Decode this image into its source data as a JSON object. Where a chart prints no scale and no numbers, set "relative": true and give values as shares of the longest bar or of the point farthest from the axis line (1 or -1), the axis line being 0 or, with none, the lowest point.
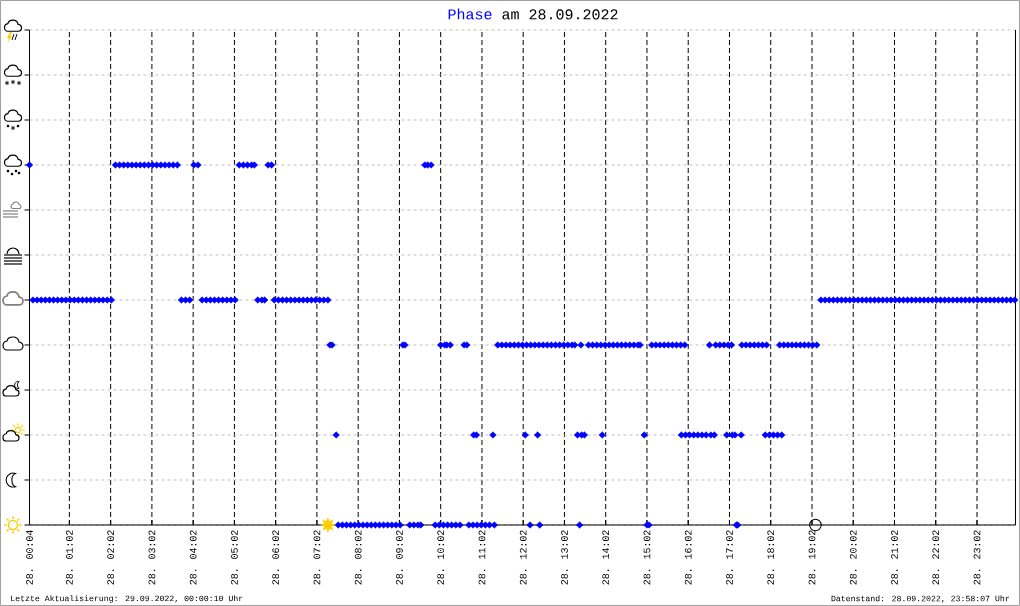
{
  "chart_data": {
    "type": "scatter",
    "title": "am 28.09.2022",
    "relative": true,
    "grid": true,
    "xlim": [
      "2022-09-28T00:04",
      "2022-09-28T23:58"
    ],
    "xticks": [
      {
        "value": "2022-09-28T00:04",
        "label": "28. 00:04"
      },
      {
        "value": "2022-09-28T01:02",
        "label": "28. 01:02"
      },
      {
        "value": "2022-09-28T02:02",
        "label": "28. 02:02"
      },
      {
        "value": "2022-09-28T03:02",
        "label": "28. 03:02"
      },
      {
        "value": "2022-09-28T04:02",
        "label": "28. 04:02"
      },
      {
        "value": "2022-09-28T05:02",
        "label": "28. 05:02"
      },
      {
        "value": "2022-09-28T06:02",
        "label": "28. 06:02"
      },
      {
        "value": "2022-09-28T07:02",
        "label": "28. 07:02"
      },
      {
        "value": "2022-09-28T08:02",
        "label": "28. 08:02"
      },
      {
        "value": "2022-09-28T09:02",
        "label": "28. 09:02"
      },
      {
        "value": "2022-09-28T10:02",
        "label": "28. 10:02"
      },
      {
        "value": "2022-09-28T11:02",
        "label": "28. 11:02"
      },
      {
        "value": "2022-09-28T12:02",
        "label": "28. 12:02"
      },
      {
        "value": "2022-09-28T13:02",
        "label": "28. 13:02"
      },
      {
        "value": "2022-09-28T14:02",
        "label": "28. 14:02"
      },
      {
        "value": "2022-09-28T15:02",
        "label": "28. 15:02"
      },
      {
        "value": "2022-09-28T16:02",
        "label": "28. 16:02"
      },
      {
        "value": "2022-09-28T17:02",
        "label": "28. 17:02"
      },
      {
        "value": "2022-09-28T18:02",
        "label": "28. 18:02"
      },
      {
        "value": "2022-09-28T19:02",
        "label": "28. 19:02"
      },
      {
        "value": "2022-09-28T20:02",
        "label": "28. 20:02"
      },
      {
        "value": "2022-09-28T21:02",
        "label": "28. 21:02"
      },
      {
        "value": "2022-09-28T22:02",
        "label": "28. 22:02"
      },
      {
        "value": "2022-09-28T23:02",
        "label": "28. 23:02"
      }
    ],
    "series": [
      {
        "name": "Phase",
        "color": "#0000ff",
        "marker": "diamond",
        "x": [
          "2022-09-28T00:04",
          "2022-09-28T00:09",
          "2022-09-28T00:15",
          "2022-09-28T00:21",
          "2022-09-28T00:27",
          "2022-09-28T00:33",
          "2022-09-28T00:39",
          "2022-09-28T00:45",
          "2022-09-28T00:51",
          "2022-09-28T00:57",
          "2022-09-28T01:03",
          "2022-09-28T01:09",
          "2022-09-28T01:15",
          "2022-09-28T01:21",
          "2022-09-28T01:27",
          "2022-09-28T01:33",
          "2022-09-28T01:39",
          "2022-09-28T01:45",
          "2022-09-28T01:51",
          "2022-09-28T01:57",
          "2022-09-28T02:03",
          "2022-09-28T02:09",
          "2022-09-28T02:15",
          "2022-09-28T02:21",
          "2022-09-28T02:27",
          "2022-09-28T02:33",
          "2022-09-28T02:39",
          "2022-09-28T02:45",
          "2022-09-28T02:51",
          "2022-09-28T02:57",
          "2022-09-28T03:03",
          "2022-09-28T03:09",
          "2022-09-28T03:15",
          "2022-09-28T03:21",
          "2022-09-28T03:27",
          "2022-09-28T03:33",
          "2022-09-28T03:39",
          "2022-09-28T03:45",
          "2022-09-28T03:51",
          "2022-09-28T03:57",
          "2022-09-28T04:03",
          "2022-09-28T04:09",
          "2022-09-28T04:15",
          "2022-09-28T04:21",
          "2022-09-28T04:27",
          "2022-09-28T04:33",
          "2022-09-28T04:39",
          "2022-09-28T04:45",
          "2022-09-28T04:51",
          "2022-09-28T04:57",
          "2022-09-28T05:03",
          "2022-09-28T05:09",
          "2022-09-28T05:15",
          "2022-09-28T05:21",
          "2022-09-28T05:27",
          "2022-09-28T05:31",
          "2022-09-28T05:36",
          "2022-09-28T05:42",
          "2022-09-28T05:46",
          "2022-09-28T05:51",
          "2022-09-28T05:56",
          "2022-09-28T06:00",
          "2022-09-28T06:06",
          "2022-09-28T06:12",
          "2022-09-28T06:18",
          "2022-09-28T06:24",
          "2022-09-28T06:30",
          "2022-09-28T06:36",
          "2022-09-28T06:42",
          "2022-09-28T06:48",
          "2022-09-28T06:54",
          "2022-09-28T07:00",
          "2022-09-28T07:06",
          "2022-09-28T07:12",
          "2022-09-28T07:18",
          "2022-09-28T07:21",
          "2022-09-28T07:24",
          "2022-09-28T07:30",
          "2022-09-28T07:33",
          "2022-09-28T07:39",
          "2022-09-28T07:45",
          "2022-09-28T07:51",
          "2022-09-28T07:57",
          "2022-09-28T08:03",
          "2022-09-28T08:09",
          "2022-09-28T08:15",
          "2022-09-28T08:21",
          "2022-09-28T08:27",
          "2022-09-28T08:33",
          "2022-09-28T08:39",
          "2022-09-28T08:45",
          "2022-09-28T08:51",
          "2022-09-28T08:57",
          "2022-09-28T09:03",
          "2022-09-28T09:07",
          "2022-09-28T09:10",
          "2022-09-28T09:17",
          "2022-09-28T09:23",
          "2022-09-28T09:29",
          "2022-09-28T09:33",
          "2022-09-28T09:39",
          "2022-09-28T09:43",
          "2022-09-28T09:48",
          "2022-09-28T09:54",
          "2022-09-28T10:00",
          "2022-09-28T10:02",
          "2022-09-28T10:06",
          "2022-09-28T10:08",
          "2022-09-28T10:11",
          "2022-09-28T10:12",
          "2022-09-28T10:16",
          "2022-09-28T10:18",
          "2022-09-28T10:24",
          "2022-09-28T10:30",
          "2022-09-28T10:36",
          "2022-09-28T10:40",
          "2022-09-28T10:43",
          "2022-09-28T10:49",
          "2022-09-28T10:50",
          "2022-09-28T10:54",
          "2022-09-28T10:55",
          "2022-09-28T11:01",
          "2022-09-28T11:07",
          "2022-09-28T11:13",
          "2022-09-28T11:18",
          "2022-09-28T11:20",
          "2022-09-28T11:25",
          "2022-09-28T11:31",
          "2022-09-28T11:37",
          "2022-09-28T11:43",
          "2022-09-28T11:49",
          "2022-09-28T11:55",
          "2022-09-28T12:01",
          "2022-09-28T12:05",
          "2022-09-28T12:07",
          "2022-09-28T12:12",
          "2022-09-28T12:13",
          "2022-09-28T12:19",
          "2022-09-28T12:23",
          "2022-09-28T12:25",
          "2022-09-28T12:26",
          "2022-09-28T12:31",
          "2022-09-28T12:37",
          "2022-09-28T12:43",
          "2022-09-28T12:49",
          "2022-09-28T12:55",
          "2022-09-28T13:01",
          "2022-09-28T13:07",
          "2022-09-28T13:13",
          "2022-09-28T13:17",
          "2022-09-28T13:21",
          "2022-09-28T13:24",
          "2022-09-28T13:26",
          "2022-09-28T13:27",
          "2022-09-28T13:31",
          "2022-09-28T13:37",
          "2022-09-28T13:43",
          "2022-09-28T13:49",
          "2022-09-28T13:55",
          "2022-09-28T13:57",
          "2022-09-28T14:01",
          "2022-09-28T14:07",
          "2022-09-28T14:13",
          "2022-09-28T14:19",
          "2022-09-28T14:25",
          "2022-09-28T14:31",
          "2022-09-28T14:37",
          "2022-09-28T14:43",
          "2022-09-28T14:49",
          "2022-09-28T14:52",
          "2022-09-28T14:58",
          "2022-09-28T15:02",
          "2022-09-28T15:05",
          "2022-09-28T15:09",
          "2022-09-28T15:15",
          "2022-09-28T15:21",
          "2022-09-28T15:27",
          "2022-09-28T15:33",
          "2022-09-28T15:39",
          "2022-09-28T15:45",
          "2022-09-28T15:51",
          "2022-09-28T15:52",
          "2022-09-28T15:57",
          "2022-09-28T15:58",
          "2022-09-28T16:04",
          "2022-09-28T16:10",
          "2022-09-28T16:16",
          "2022-09-28T16:22",
          "2022-09-28T16:28",
          "2022-09-28T16:33",
          "2022-09-28T16:35",
          "2022-09-28T16:40",
          "2022-09-28T16:42",
          "2022-09-28T16:48",
          "2022-09-28T16:54",
          "2022-09-28T16:58",
          "2022-09-28T17:00",
          "2022-09-28T17:05",
          "2022-09-28T17:06",
          "2022-09-28T17:10",
          "2022-09-28T17:12",
          "2022-09-28T17:14",
          "2022-09-28T17:19",
          "2022-09-28T17:20",
          "2022-09-28T17:26",
          "2022-09-28T17:32",
          "2022-09-28T17:38",
          "2022-09-28T17:44",
          "2022-09-28T17:50",
          "2022-09-28T17:54",
          "2022-09-28T17:56",
          "2022-09-28T18:00",
          "2022-09-28T18:06",
          "2022-09-28T18:12",
          "2022-09-28T18:15",
          "2022-09-28T18:18",
          "2022-09-28T18:21",
          "2022-09-28T18:27",
          "2022-09-28T18:33",
          "2022-09-28T18:39",
          "2022-09-28T18:45",
          "2022-09-28T18:51",
          "2022-09-28T18:57",
          "2022-09-28T19:03",
          "2022-09-28T19:09",
          "2022-09-28T19:15",
          "2022-09-28T19:21",
          "2022-09-28T19:27",
          "2022-09-28T19:33",
          "2022-09-28T19:39",
          "2022-09-28T19:45",
          "2022-09-28T19:51",
          "2022-09-28T19:57",
          "2022-09-28T20:03",
          "2022-09-28T20:09",
          "2022-09-28T20:15",
          "2022-09-28T20:21",
          "2022-09-28T20:27",
          "2022-09-28T20:33",
          "2022-09-28T20:39",
          "2022-09-28T20:45",
          "2022-09-28T20:51",
          "2022-09-28T20:57",
          "2022-09-28T21:03",
          "2022-09-28T21:09",
          "2022-09-28T21:15",
          "2022-09-28T21:21",
          "2022-09-28T21:27",
          "2022-09-28T21:33",
          "2022-09-28T21:39",
          "2022-09-28T21:45",
          "2022-09-28T21:51",
          "2022-09-28T21:57",
          "2022-09-28T22:03",
          "2022-09-28T22:09",
          "2022-09-28T22:15",
          "2022-09-28T22:21",
          "2022-09-28T22:27",
          "2022-09-28T22:33",
          "2022-09-28T22:39",
          "2022-09-28T22:45",
          "2022-09-28T22:51",
          "2022-09-28T22:57",
          "2022-09-28T23:03",
          "2022-09-28T23:09",
          "2022-09-28T23:15",
          "2022-09-28T23:21",
          "2022-09-28T23:27",
          "2022-09-28T23:33",
          "2022-09-28T23:39",
          "2022-09-28T23:45",
          "2022-09-28T23:51",
          "2022-09-28T23:57"
        ],
        "values": [
          1,
          0.625,
          0.625,
          0.625,
          0.625,
          0.625,
          0.625,
          0.625,
          0.625,
          0.625,
          0.625,
          0.625,
          0.625,
          0.625,
          0.625,
          0.625,
          0.625,
          0.625,
          0.625,
          0.625,
          0.625,
          1,
          1,
          1,
          1,
          1,
          1,
          1,
          1,
          1,
          1,
          1,
          1,
          1,
          1,
          1,
          1,
          0.625,
          0.625,
          0.625,
          1,
          1,
          0.625,
          0.625,
          0.625,
          0.625,
          0.625,
          0.625,
          0.625,
          0.625,
          0.625,
          1,
          1,
          1,
          1,
          1,
          0.625,
          0.625,
          0.625,
          1,
          1,
          0.625,
          0.625,
          0.625,
          0.625,
          0.625,
          0.625,
          0.625,
          0.625,
          0.625,
          0.625,
          0.625,
          0.625,
          0.625,
          0.625,
          0.5,
          0.5,
          0.25,
          0,
          0,
          0,
          0,
          0,
          0,
          0,
          0,
          0,
          0,
          0,
          0,
          0,
          0,
          0,
          0,
          0.5,
          0.5,
          0,
          0,
          0,
          0,
          1,
          1,
          1,
          0,
          0,
          0.5,
          0,
          0.5,
          0.5,
          0,
          0.5,
          0,
          0,
          0,
          0.5,
          0.5,
          0,
          0,
          0.25,
          0.25,
          0,
          0,
          0,
          0,
          0.25,
          0,
          0.5,
          0.5,
          0.5,
          0.5,
          0.5,
          0.5,
          0.5,
          0.25,
          0.5,
          0,
          0.5,
          0.5,
          0.25,
          0.5,
          0,
          0.5,
          0.5,
          0.5,
          0.5,
          0.5,
          0.5,
          0.5,
          0.5,
          0.5,
          0.25,
          0,
          0.5,
          0.25,
          0.25,
          0.5,
          0.5,
          0.5,
          0.5,
          0.25,
          0.5,
          0.5,
          0.5,
          0.5,
          0.5,
          0.5,
          0.5,
          0.5,
          0.5,
          0.5,
          0.25,
          0,
          0,
          0.5,
          0.5,
          0.5,
          0.5,
          0.5,
          0.5,
          0.5,
          0.5,
          0.25,
          0.5,
          0.25,
          0.25,
          0.25,
          0.25,
          0.25,
          0.25,
          0.5,
          0.25,
          0.25,
          0.5,
          0.5,
          0.5,
          0.25,
          0.5,
          0.5,
          0.25,
          0.25,
          0,
          0,
          0.25,
          0.5,
          0.5,
          0.5,
          0.5,
          0.5,
          0.5,
          0.25,
          0.5,
          0.25,
          0.25,
          0.25,
          0.5,
          0.25,
          0.5,
          0.5,
          0.5,
          0.5,
          0.5,
          0.5,
          0.5,
          0.5,
          0.5,
          0.625,
          0.625,
          0.625,
          0.625,
          0.625,
          0.625,
          0.625,
          0.625,
          0.625,
          0.625,
          0.625,
          0.625,
          0.625,
          0.625,
          0.625,
          0.625,
          0.625,
          0.625,
          0.625,
          0.625,
          0.625,
          0.625,
          0.625,
          0.625,
          0.625,
          0.625,
          0.625,
          0.625,
          0.625,
          0.625,
          0.625,
          0.625,
          0.625,
          0.625,
          0.625,
          0.625,
          0.625,
          0.625,
          0.625,
          0.625,
          0.625,
          0.625,
          0.625,
          0.625,
          0.625,
          0.625,
          0.625,
          0.625
        ]
      },
      {
        "color": "#ffcc00",
        "marker": "star",
        "x": [
          "2022-09-28T07:18"
        ],
        "values": [
          0
        ]
      },
      {
        "color": "#000000",
        "marker": "circle",
        "x": [
          "2022-09-28T19:07"
        ],
        "values": [
          0
        ]
      }
    ],
    "annotations": [
      "Letzte Aktualisierung: 29.09.2022, 00:00:10 Uhr",
      "Datenstand: 28.09.2022, 23:58:07 Uhr"
    ]
  }
}
